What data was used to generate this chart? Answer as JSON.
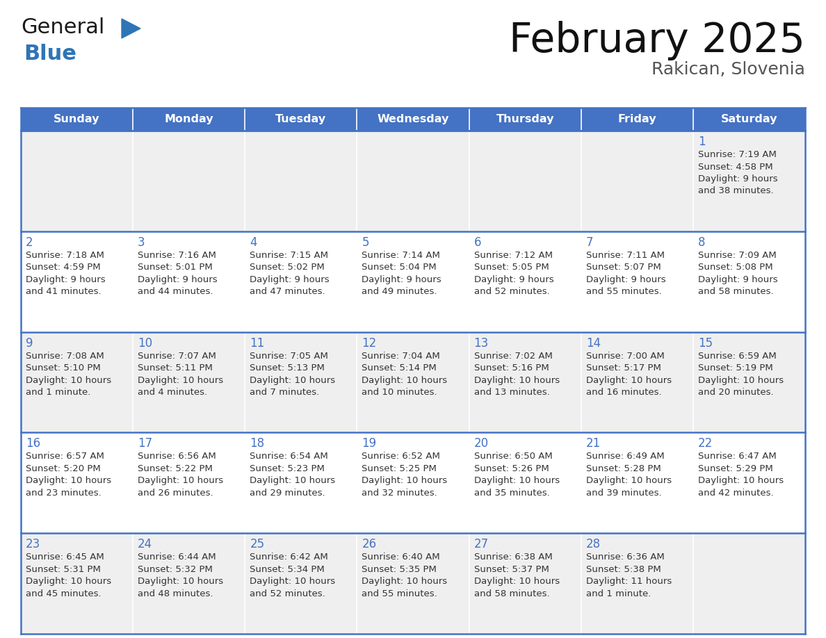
{
  "title": "February 2025",
  "subtitle": "Rakican, Slovenia",
  "days_of_week": [
    "Sunday",
    "Monday",
    "Tuesday",
    "Wednesday",
    "Thursday",
    "Friday",
    "Saturday"
  ],
  "header_bg": "#4472C4",
  "header_text": "#FFFFFF",
  "cell_bg_odd": "#EFEFEF",
  "cell_bg_even": "#FFFFFF",
  "cell_border": "#4472C4",
  "day_number_color": "#4472C4",
  "text_color": "#333333",
  "logo_color_general": "#1a1a1a",
  "logo_color_blue": "#2E75B6",
  "logo_triangle_color": "#2E75B6",
  "calendar": [
    [
      null,
      null,
      null,
      null,
      null,
      null,
      {
        "day": 1,
        "sunrise": "7:19 AM",
        "sunset": "4:58 PM",
        "daylight": "9 hours\nand 38 minutes."
      }
    ],
    [
      {
        "day": 2,
        "sunrise": "7:18 AM",
        "sunset": "4:59 PM",
        "daylight": "9 hours\nand 41 minutes."
      },
      {
        "day": 3,
        "sunrise": "7:16 AM",
        "sunset": "5:01 PM",
        "daylight": "9 hours\nand 44 minutes."
      },
      {
        "day": 4,
        "sunrise": "7:15 AM",
        "sunset": "5:02 PM",
        "daylight": "9 hours\nand 47 minutes."
      },
      {
        "day": 5,
        "sunrise": "7:14 AM",
        "sunset": "5:04 PM",
        "daylight": "9 hours\nand 49 minutes."
      },
      {
        "day": 6,
        "sunrise": "7:12 AM",
        "sunset": "5:05 PM",
        "daylight": "9 hours\nand 52 minutes."
      },
      {
        "day": 7,
        "sunrise": "7:11 AM",
        "sunset": "5:07 PM",
        "daylight": "9 hours\nand 55 minutes."
      },
      {
        "day": 8,
        "sunrise": "7:09 AM",
        "sunset": "5:08 PM",
        "daylight": "9 hours\nand 58 minutes."
      }
    ],
    [
      {
        "day": 9,
        "sunrise": "7:08 AM",
        "sunset": "5:10 PM",
        "daylight": "10 hours\nand 1 minute."
      },
      {
        "day": 10,
        "sunrise": "7:07 AM",
        "sunset": "5:11 PM",
        "daylight": "10 hours\nand 4 minutes."
      },
      {
        "day": 11,
        "sunrise": "7:05 AM",
        "sunset": "5:13 PM",
        "daylight": "10 hours\nand 7 minutes."
      },
      {
        "day": 12,
        "sunrise": "7:04 AM",
        "sunset": "5:14 PM",
        "daylight": "10 hours\nand 10 minutes."
      },
      {
        "day": 13,
        "sunrise": "7:02 AM",
        "sunset": "5:16 PM",
        "daylight": "10 hours\nand 13 minutes."
      },
      {
        "day": 14,
        "sunrise": "7:00 AM",
        "sunset": "5:17 PM",
        "daylight": "10 hours\nand 16 minutes."
      },
      {
        "day": 15,
        "sunrise": "6:59 AM",
        "sunset": "5:19 PM",
        "daylight": "10 hours\nand 20 minutes."
      }
    ],
    [
      {
        "day": 16,
        "sunrise": "6:57 AM",
        "sunset": "5:20 PM",
        "daylight": "10 hours\nand 23 minutes."
      },
      {
        "day": 17,
        "sunrise": "6:56 AM",
        "sunset": "5:22 PM",
        "daylight": "10 hours\nand 26 minutes."
      },
      {
        "day": 18,
        "sunrise": "6:54 AM",
        "sunset": "5:23 PM",
        "daylight": "10 hours\nand 29 minutes."
      },
      {
        "day": 19,
        "sunrise": "6:52 AM",
        "sunset": "5:25 PM",
        "daylight": "10 hours\nand 32 minutes."
      },
      {
        "day": 20,
        "sunrise": "6:50 AM",
        "sunset": "5:26 PM",
        "daylight": "10 hours\nand 35 minutes."
      },
      {
        "day": 21,
        "sunrise": "6:49 AM",
        "sunset": "5:28 PM",
        "daylight": "10 hours\nand 39 minutes."
      },
      {
        "day": 22,
        "sunrise": "6:47 AM",
        "sunset": "5:29 PM",
        "daylight": "10 hours\nand 42 minutes."
      }
    ],
    [
      {
        "day": 23,
        "sunrise": "6:45 AM",
        "sunset": "5:31 PM",
        "daylight": "10 hours\nand 45 minutes."
      },
      {
        "day": 24,
        "sunrise": "6:44 AM",
        "sunset": "5:32 PM",
        "daylight": "10 hours\nand 48 minutes."
      },
      {
        "day": 25,
        "sunrise": "6:42 AM",
        "sunset": "5:34 PM",
        "daylight": "10 hours\nand 52 minutes."
      },
      {
        "day": 26,
        "sunrise": "6:40 AM",
        "sunset": "5:35 PM",
        "daylight": "10 hours\nand 55 minutes."
      },
      {
        "day": 27,
        "sunrise": "6:38 AM",
        "sunset": "5:37 PM",
        "daylight": "10 hours\nand 58 minutes."
      },
      {
        "day": 28,
        "sunrise": "6:36 AM",
        "sunset": "5:38 PM",
        "daylight": "11 hours\nand 1 minute."
      },
      null
    ]
  ]
}
